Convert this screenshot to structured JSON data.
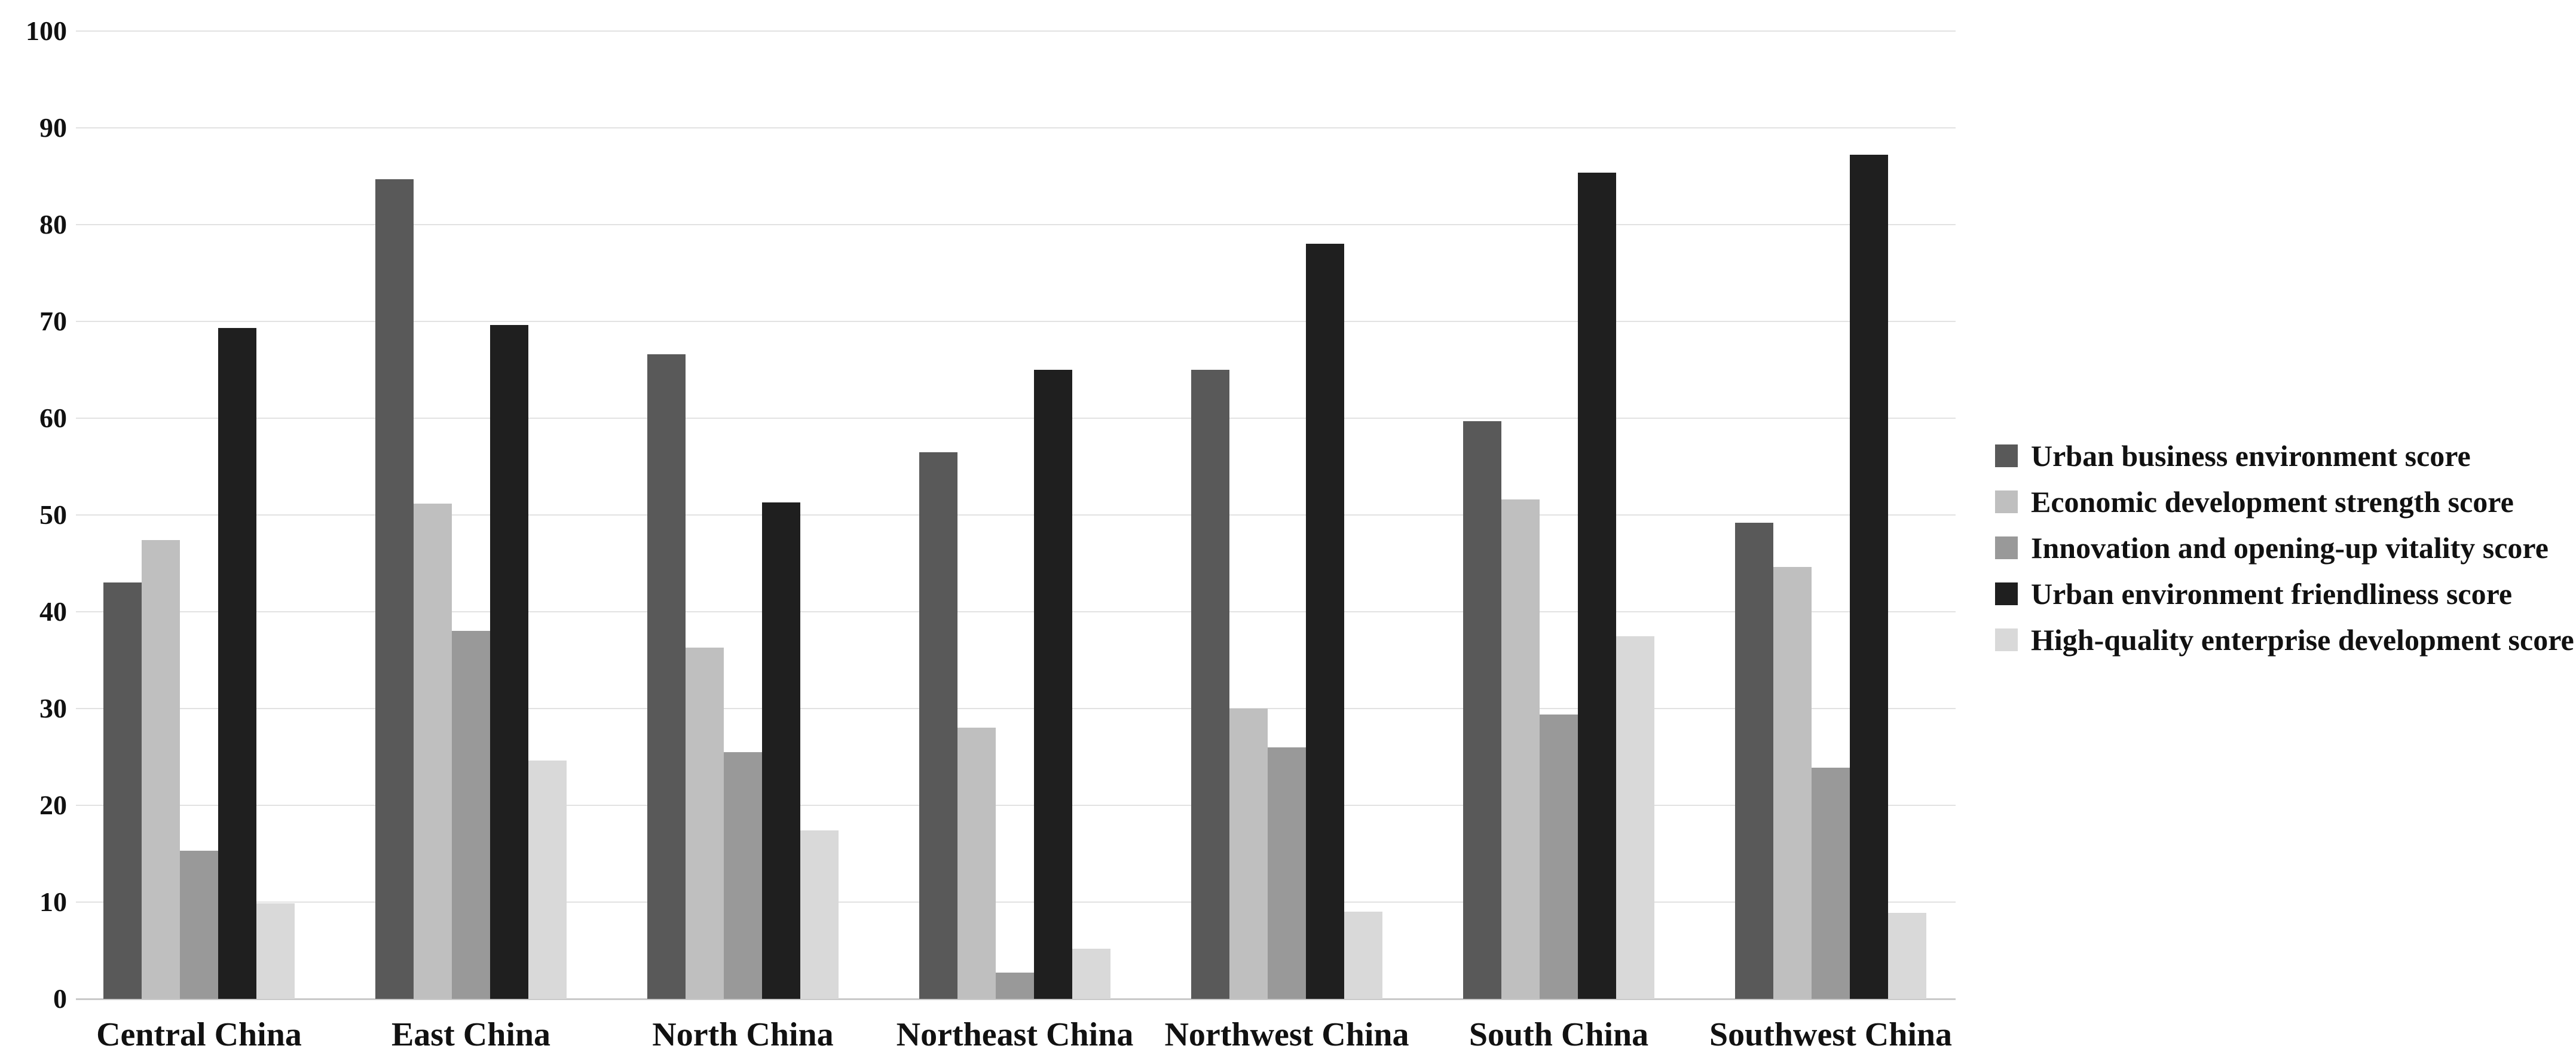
{
  "chart_data": {
    "type": "bar",
    "title": "",
    "xlabel": "",
    "ylabel": "",
    "categories": [
      "Central China",
      "East China",
      "North China",
      "Northeast China",
      "Northwest China",
      "South China",
      "Southwest China"
    ],
    "series": [
      {
        "name": "Urban business environment score",
        "color": "#595959",
        "values": [
          43.0,
          84.7,
          66.6,
          56.5,
          65.0,
          59.7,
          49.2
        ]
      },
      {
        "name": "Economic development strength score",
        "color": "#bfbfbf",
        "values": [
          47.4,
          51.2,
          36.3,
          28.0,
          30.0,
          51.6,
          44.6
        ]
      },
      {
        "name": "Innovation and opening-up vitality score",
        "color": "#999999",
        "values": [
          15.3,
          38.0,
          25.5,
          2.7,
          26.0,
          29.4,
          23.9
        ]
      },
      {
        "name": "Urban environment friendliness score",
        "color": "#1f1f1f",
        "values": [
          69.3,
          69.6,
          51.3,
          65.0,
          78.0,
          85.4,
          87.2
        ]
      },
      {
        "name": "High-quality enterprise development score",
        "color": "#d9d9d9",
        "values": [
          9.9,
          24.6,
          17.4,
          5.2,
          9.0,
          37.5,
          8.9
        ]
      }
    ],
    "ylim": [
      0,
      100
    ],
    "yticks": [
      0,
      10,
      20,
      30,
      40,
      50,
      60,
      70,
      80,
      90,
      100
    ],
    "grid": true,
    "legend_position": "right"
  },
  "colors": {
    "background": "#ffffff",
    "gridline": "#e2e2e2",
    "baseline": "#c9c9c9",
    "text": "#111111"
  }
}
